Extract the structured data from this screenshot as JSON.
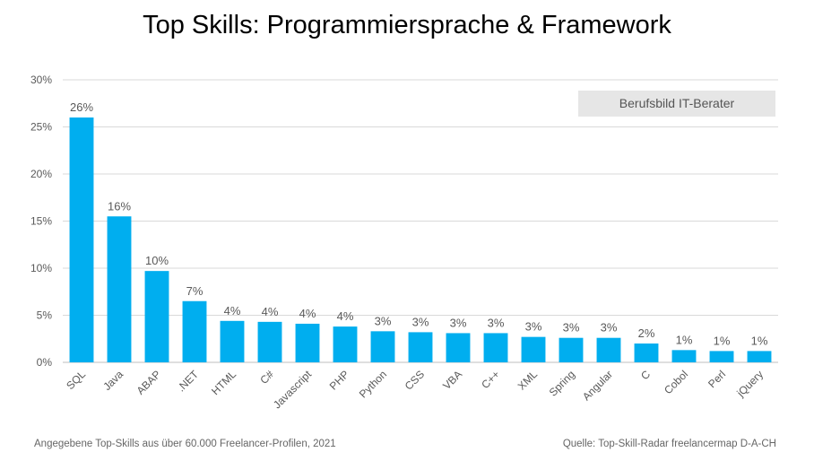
{
  "title": "Top Skills: Programmiersprache & Framework",
  "badge": "Berufsbild IT-Berater",
  "footer": {
    "left": "Angegebene Top-Skills aus über 60.000 Freelancer-Profilen,  2021",
    "right": "Quelle: Top-Skill-Radar freelancermap D-A-CH"
  },
  "colors": {
    "bar": "#00aeef",
    "grid": "#d9d9d9",
    "axis": "#595959",
    "label": "#595959"
  },
  "chart_data": {
    "type": "bar",
    "title": "Top Skills: Programmiersprache & Framework",
    "categories": [
      "SQL",
      "Java",
      "ABAP",
      ".NET",
      "HTML",
      "C#",
      "Javascript",
      "PHP",
      "Python",
      "CSS",
      "VBA",
      "C++",
      "XML",
      "Spring",
      "Angular",
      "C",
      "Cobol",
      "Perl",
      "jQuery"
    ],
    "values": [
      26.0,
      15.5,
      9.7,
      6.5,
      4.4,
      4.3,
      4.1,
      3.8,
      3.3,
      3.2,
      3.1,
      3.1,
      2.7,
      2.6,
      2.6,
      2.0,
      1.3,
      1.2,
      1.2
    ],
    "data_labels": [
      "26%",
      "16%",
      "10%",
      "7%",
      "4%",
      "4%",
      "4%",
      "4%",
      "3%",
      "3%",
      "3%",
      "3%",
      "3%",
      "3%",
      "3%",
      "2%",
      "1%",
      "1%",
      "1%"
    ],
    "y_ticks": [
      "0%",
      "5%",
      "10%",
      "15%",
      "20%",
      "25%",
      "30%"
    ],
    "ylim": [
      0,
      30
    ],
    "xlabel": "",
    "ylabel": "",
    "grid": true,
    "legend": "none"
  }
}
